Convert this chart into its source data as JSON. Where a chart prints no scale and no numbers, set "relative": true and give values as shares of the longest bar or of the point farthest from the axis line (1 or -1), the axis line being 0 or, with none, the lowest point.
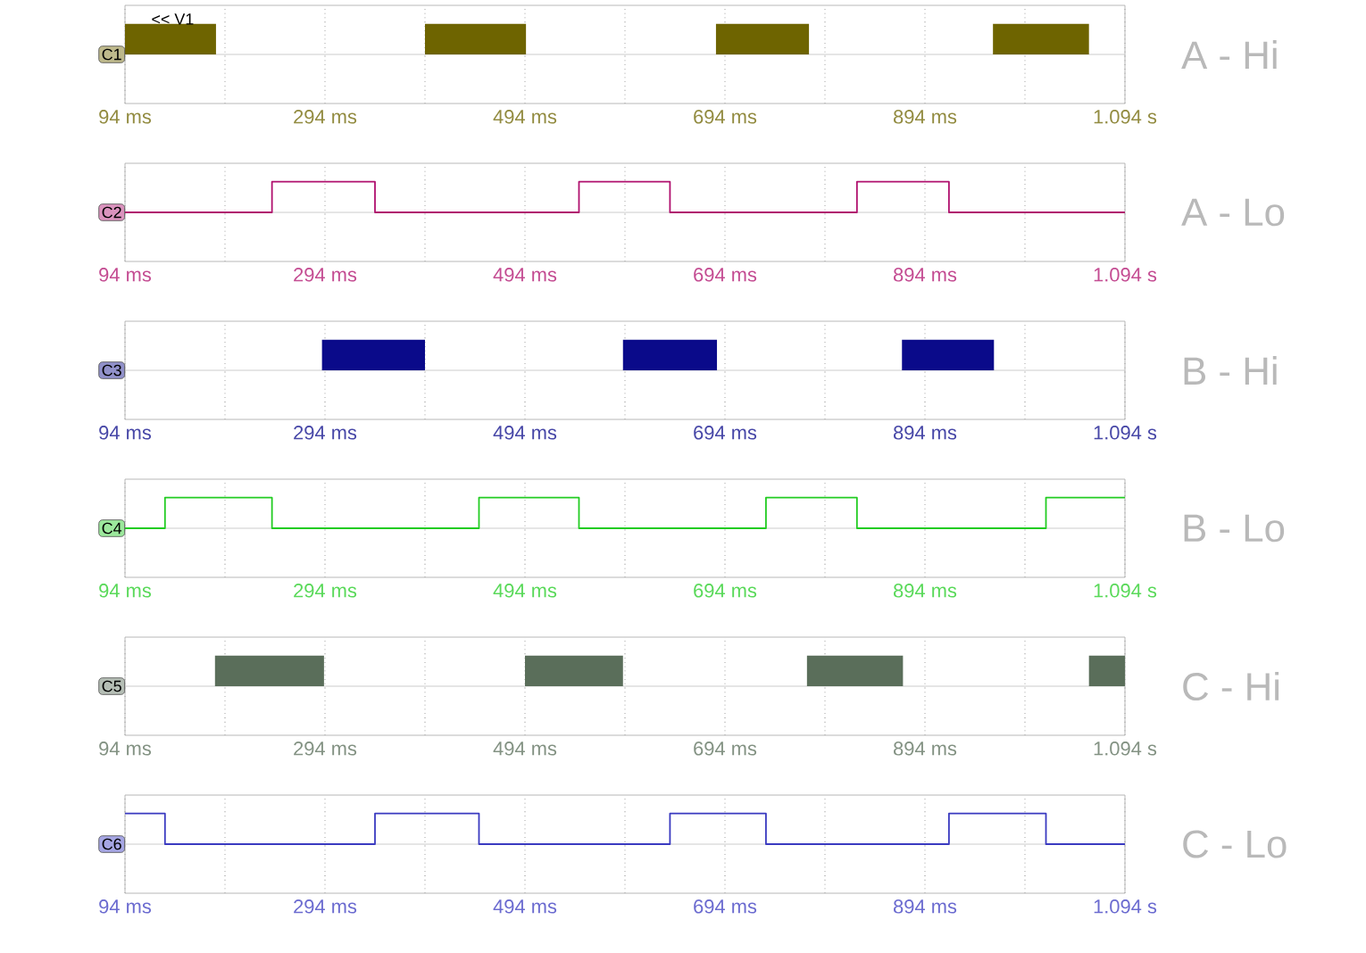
{
  "chart_data": [
    {
      "type": "area",
      "y2label": "A - Hi",
      "ylabel": "C1",
      "annotations": [
        "<< V1"
      ],
      "relative": true,
      "color": "#6e6400",
      "grid": "x",
      "xlim": [
        94,
        1094
      ],
      "xticks": [
        {
          "value": 94,
          "label": "94 ms"
        },
        {
          "value": 194,
          "label": null
        },
        {
          "value": 294,
          "label": "294 ms"
        },
        {
          "value": 394,
          "label": null
        },
        {
          "value": 494,
          "label": "494 ms"
        },
        {
          "value": 594,
          "label": null
        },
        {
          "value": 694,
          "label": "694 ms"
        },
        {
          "value": 794,
          "label": null
        },
        {
          "value": 894,
          "label": "894 ms"
        },
        {
          "value": 994,
          "label": null
        },
        {
          "value": 1094,
          "label": "1.094 s"
        }
      ],
      "x": [
        94,
        185,
        394,
        495,
        685,
        778,
        962,
        1058,
        1094
      ],
      "values": [
        1,
        0,
        1,
        0,
        1,
        0,
        1,
        0,
        0
      ]
    },
    {
      "type": "step",
      "y2label": "A - Lo",
      "ylabel": "C2",
      "relative": true,
      "color": "#b0106e",
      "grid": "x",
      "xlim": [
        94,
        1094
      ],
      "xticks": [
        {
          "value": 94,
          "label": "94 ms"
        },
        {
          "value": 194,
          "label": null
        },
        {
          "value": 294,
          "label": "294 ms"
        },
        {
          "value": 394,
          "label": null
        },
        {
          "value": 494,
          "label": "494 ms"
        },
        {
          "value": 594,
          "label": null
        },
        {
          "value": 694,
          "label": "694 ms"
        },
        {
          "value": 794,
          "label": null
        },
        {
          "value": 894,
          "label": "894 ms"
        },
        {
          "value": 994,
          "label": null
        },
        {
          "value": 1094,
          "label": "1.094 s"
        }
      ],
      "x": [
        94,
        241,
        344,
        548,
        639,
        826,
        918,
        1094
      ],
      "values": [
        0,
        1,
        0,
        1,
        0,
        1,
        0,
        0
      ]
    },
    {
      "type": "area",
      "y2label": "B - Hi",
      "ylabel": "C3",
      "relative": true,
      "color": "#0a0a8a",
      "grid": "x",
      "xlim": [
        94,
        1094
      ],
      "xticks": [
        {
          "value": 94,
          "label": "94 ms"
        },
        {
          "value": 194,
          "label": null
        },
        {
          "value": 294,
          "label": "294 ms"
        },
        {
          "value": 394,
          "label": null
        },
        {
          "value": 494,
          "label": "494 ms"
        },
        {
          "value": 594,
          "label": null
        },
        {
          "value": 694,
          "label": "694 ms"
        },
        {
          "value": 794,
          "label": null
        },
        {
          "value": 894,
          "label": "894 ms"
        },
        {
          "value": 994,
          "label": null
        },
        {
          "value": 1094,
          "label": "1.094 s"
        }
      ],
      "x": [
        94,
        291,
        394,
        592,
        686,
        871,
        963,
        1094
      ],
      "values": [
        0,
        1,
        0,
        1,
        0,
        1,
        0,
        0
      ]
    },
    {
      "type": "step",
      "y2label": "B - Lo",
      "ylabel": "C4",
      "relative": true,
      "color": "#22cc22",
      "grid": "x",
      "xlim": [
        94,
        1094
      ],
      "xticks": [
        {
          "value": 94,
          "label": "94 ms"
        },
        {
          "value": 194,
          "label": null
        },
        {
          "value": 294,
          "label": "294 ms"
        },
        {
          "value": 394,
          "label": null
        },
        {
          "value": 494,
          "label": "494 ms"
        },
        {
          "value": 594,
          "label": null
        },
        {
          "value": 694,
          "label": "694 ms"
        },
        {
          "value": 794,
          "label": null
        },
        {
          "value": 894,
          "label": "894 ms"
        },
        {
          "value": 994,
          "label": null
        },
        {
          "value": 1094,
          "label": "1.094 s"
        }
      ],
      "x": [
        94,
        134,
        241,
        448,
        548,
        735,
        826,
        1015,
        1094
      ],
      "values": [
        0,
        1,
        0,
        1,
        0,
        1,
        0,
        1,
        1
      ]
    },
    {
      "type": "area",
      "y2label": "C - Hi",
      "ylabel": "C5",
      "relative": true,
      "color": "#5a6e5a",
      "grid": "x",
      "xlim": [
        94,
        1094
      ],
      "xticks": [
        {
          "value": 94,
          "label": "94 ms"
        },
        {
          "value": 194,
          "label": null
        },
        {
          "value": 294,
          "label": "294 ms"
        },
        {
          "value": 394,
          "label": null
        },
        {
          "value": 494,
          "label": "494 ms"
        },
        {
          "value": 594,
          "label": null
        },
        {
          "value": 694,
          "label": "694 ms"
        },
        {
          "value": 794,
          "label": null
        },
        {
          "value": 894,
          "label": "894 ms"
        },
        {
          "value": 994,
          "label": null
        },
        {
          "value": 1094,
          "label": "1.094 s"
        }
      ],
      "x": [
        94,
        184,
        293,
        494,
        592,
        776,
        872,
        1058,
        1094
      ],
      "values": [
        0,
        1,
        0,
        1,
        0,
        1,
        0,
        1,
        1
      ]
    },
    {
      "type": "step",
      "y2label": "C - Lo",
      "ylabel": "C6",
      "relative": true,
      "color": "#3a3ac0",
      "grid": "x",
      "xlim": [
        94,
        1094
      ],
      "xticks": [
        {
          "value": 94,
          "label": "94 ms"
        },
        {
          "value": 194,
          "label": null
        },
        {
          "value": 294,
          "label": "294 ms"
        },
        {
          "value": 394,
          "label": null
        },
        {
          "value": 494,
          "label": "494 ms"
        },
        {
          "value": 594,
          "label": null
        },
        {
          "value": 694,
          "label": "694 ms"
        },
        {
          "value": 794,
          "label": null
        },
        {
          "value": 894,
          "label": "894 ms"
        },
        {
          "value": 994,
          "label": null
        },
        {
          "value": 1094,
          "label": "1.094 s"
        }
      ],
      "x": [
        94,
        134,
        344,
        448,
        639,
        735,
        918,
        1015,
        1094
      ],
      "values": [
        1,
        0,
        1,
        0,
        1,
        0,
        1,
        0,
        0
      ]
    }
  ]
}
